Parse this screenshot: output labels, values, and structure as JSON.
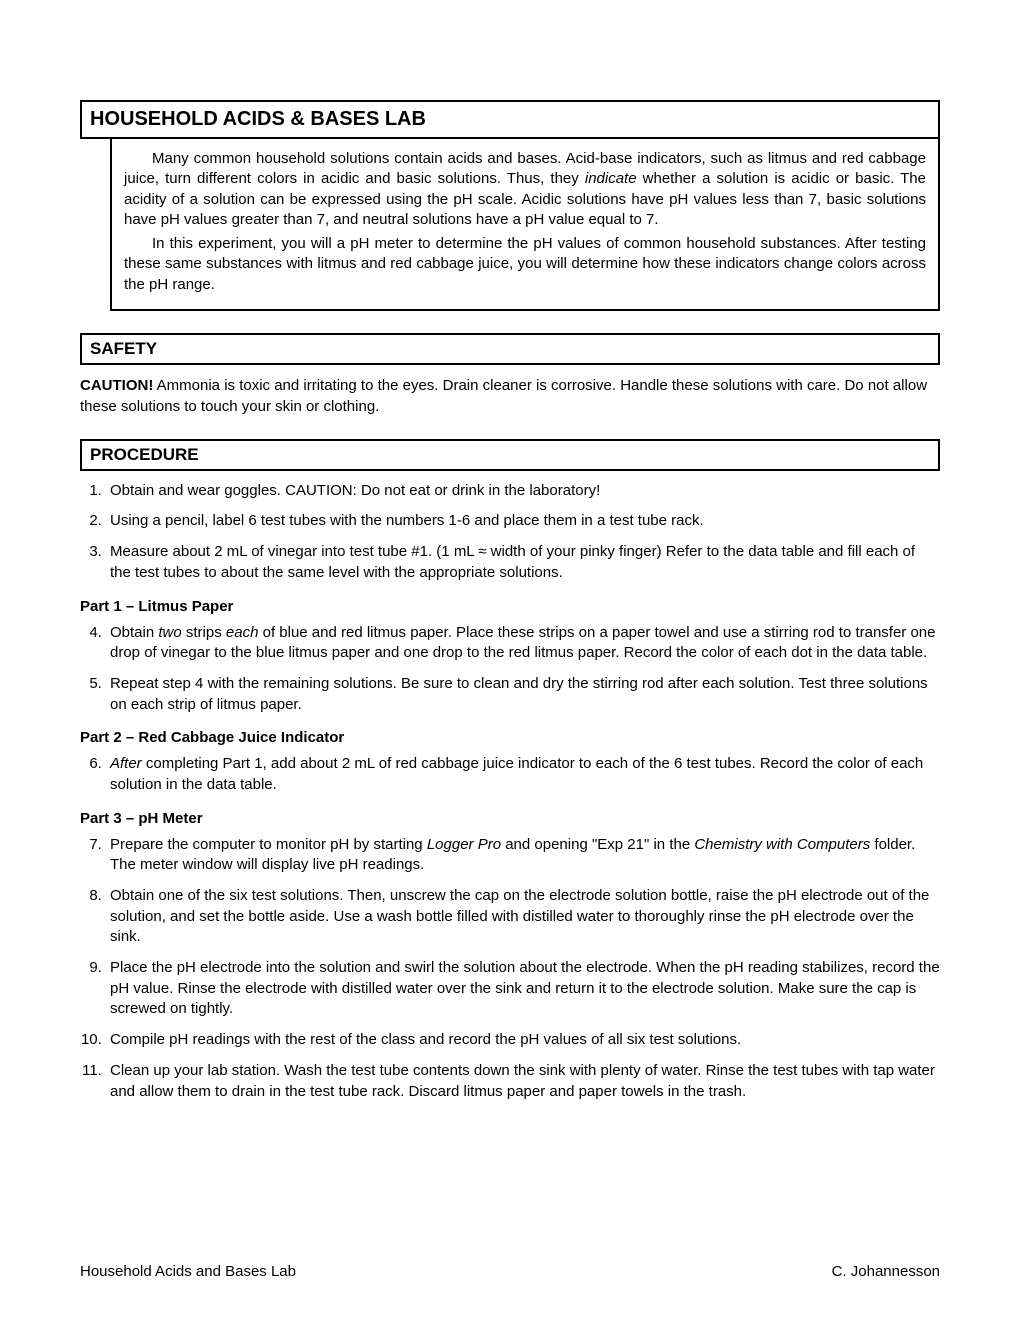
{
  "title": "HOUSEHOLD ACIDS & BASES LAB",
  "intro": {
    "p1_a": "Many common household solutions contain acids and bases.  Acid-base indicators, such as litmus and red cabbage juice, turn different colors in acidic and basic solutions.  Thus, they ",
    "p1_i": "indicate",
    "p1_b": " whether a solution is acidic or basic.  The acidity of a solution can be expressed using the pH scale.   Acidic solutions have pH values less than 7, basic solutions have pH values greater than 7, and neutral solutions have a pH value equal to 7.",
    "p2": "In this experiment, you will a pH meter to determine the pH values of common household substances.  After testing these same substances with litmus and red cabbage juice, you will determine how these indicators change colors across the pH range."
  },
  "safety": {
    "header": "SAFETY",
    "caution_b": "CAUTION!",
    "caution_t": "  Ammonia is toxic and irritating to the eyes.  Drain cleaner is corrosive.  Handle these solutions with care.  Do not allow these solutions to touch your skin or clothing."
  },
  "procedure": {
    "header": "PROCEDURE",
    "s1": "Obtain and wear goggles.  CAUTION:  Do not eat or drink in the laboratory!",
    "s2": "Using a pencil, label 6 test tubes with the numbers 1-6 and place them in a test tube rack.",
    "s3": "Measure about 2 mL of vinegar into test tube #1.  (1 mL ≈ width of your pinky finger)  Refer to the data table and fill each of the test tubes to about the same level with the appropriate solutions.",
    "part1": "Part 1 – Litmus Paper",
    "s4_a": "Obtain ",
    "s4_i1": "two",
    "s4_b": " strips ",
    "s4_i2": "each",
    "s4_c": " of blue and red litmus paper.  Place these strips on a paper towel and use a stirring rod to transfer one drop of vinegar to the blue litmus paper and one drop to the red litmus paper.  Record the color of each dot in the data table.",
    "s5": "Repeat step 4 with the remaining solutions.  Be sure to clean and dry the stirring rod after each solution.  Test three solutions on each strip of litmus paper.",
    "part2": "Part 2 – Red Cabbage Juice Indicator",
    "s6_i": "After",
    "s6_a": " completing Part 1, add about 2 mL of red cabbage juice indicator to each of the 6 test tubes.  Record the color of each solution in the data table.",
    "part3": "Part 3 – pH Meter",
    "s7_a": "Prepare the computer to monitor pH by starting ",
    "s7_i1": "Logger Pro",
    "s7_b": " and opening \"Exp 21\" in the ",
    "s7_i2": "Chemistry with Computers",
    "s7_c": " folder.  The meter window will display live pH readings.",
    "s8": "Obtain one of the six test solutions.  Then, unscrew the cap on the electrode solution bottle, raise the pH electrode out of the solution, and set the bottle aside.  Use a wash bottle filled with distilled water to thoroughly rinse the pH electrode over the sink.",
    "s9": "Place the pH electrode into the solution and swirl the solution about the electrode.  When the pH reading stabilizes, record the pH value.  Rinse the electrode with distilled water over the sink and return it to the electrode solution.  Make sure the cap is screwed on tightly.",
    "s10": "Compile pH readings with the rest of the class and record the pH values of all six test solutions.",
    "s11": "Clean up your lab station.  Wash the test tube contents down the sink with plenty of water.  Rinse the test tubes with tap water and allow them to drain in the test tube rack.  Discard litmus paper and paper towels in the trash."
  },
  "footer": {
    "left": "Household Acids and Bases Lab",
    "right": "C. Johannesson"
  }
}
